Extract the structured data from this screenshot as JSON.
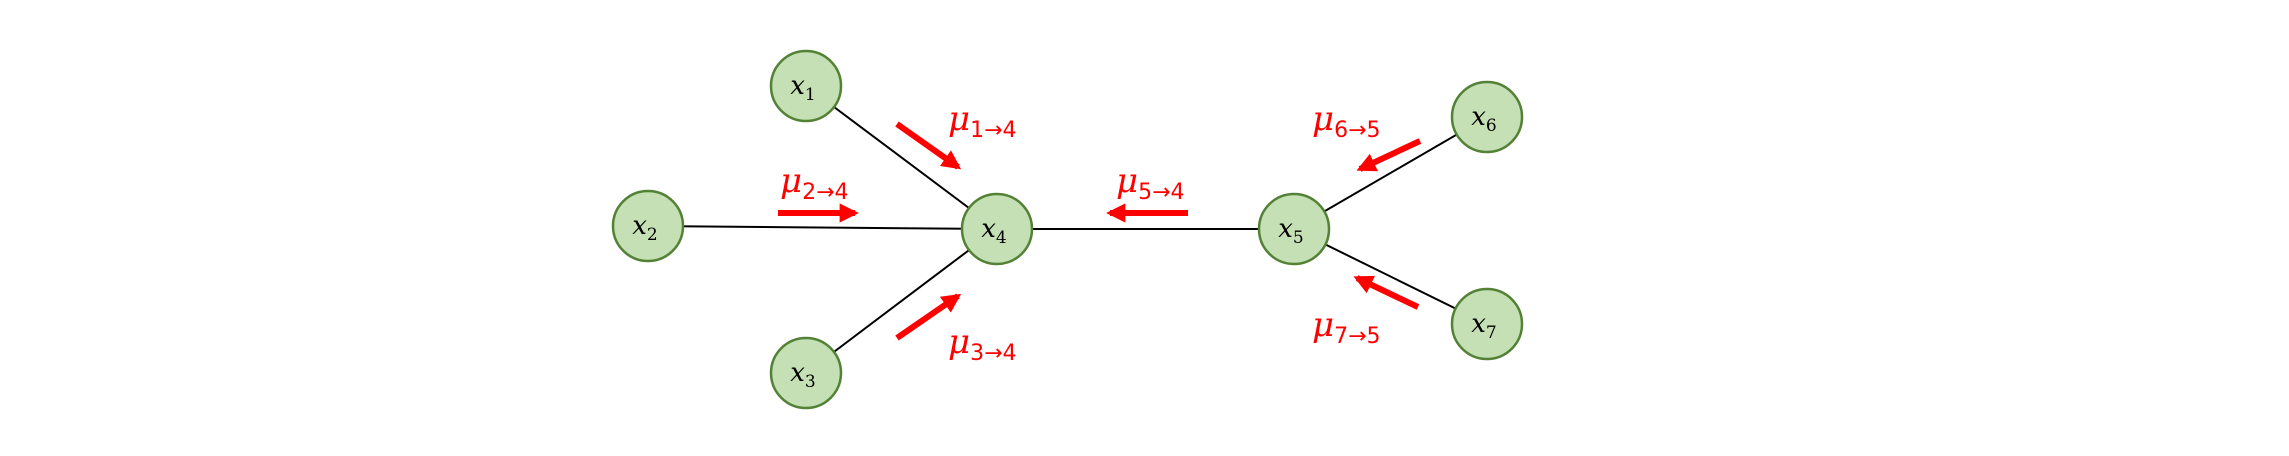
{
  "colors": {
    "node_fill": "#c5e0b4",
    "node_stroke": "#538135",
    "edge": "#000000",
    "message": "#ff0000"
  },
  "nodes": [
    {
      "id": "x1",
      "symbol": "x",
      "index": "1"
    },
    {
      "id": "x2",
      "symbol": "x",
      "index": "2"
    },
    {
      "id": "x3",
      "symbol": "x",
      "index": "3"
    },
    {
      "id": "x4",
      "symbol": "x",
      "index": "4"
    },
    {
      "id": "x5",
      "symbol": "x",
      "index": "5"
    },
    {
      "id": "x6",
      "symbol": "x",
      "index": "6"
    },
    {
      "id": "x7",
      "symbol": "x",
      "index": "7"
    }
  ],
  "edges": [
    {
      "from": "x1",
      "to": "x4"
    },
    {
      "from": "x2",
      "to": "x4"
    },
    {
      "from": "x3",
      "to": "x4"
    },
    {
      "from": "x4",
      "to": "x5"
    },
    {
      "from": "x5",
      "to": "x6"
    },
    {
      "from": "x5",
      "to": "x7"
    }
  ],
  "messages": [
    {
      "id": "m14",
      "symbol": "μ",
      "subscript": "1→4",
      "from": "x1",
      "to": "x4"
    },
    {
      "id": "m24",
      "symbol": "μ",
      "subscript": "2→4",
      "from": "x2",
      "to": "x4"
    },
    {
      "id": "m34",
      "symbol": "μ",
      "subscript": "3→4",
      "from": "x3",
      "to": "x4"
    },
    {
      "id": "m54",
      "symbol": "μ",
      "subscript": "5→4",
      "from": "x5",
      "to": "x4"
    },
    {
      "id": "m65",
      "symbol": "μ",
      "subscript": "6→5",
      "from": "x6",
      "to": "x5"
    },
    {
      "id": "m75",
      "symbol": "μ",
      "subscript": "7→5",
      "from": "x7",
      "to": "x5"
    }
  ]
}
